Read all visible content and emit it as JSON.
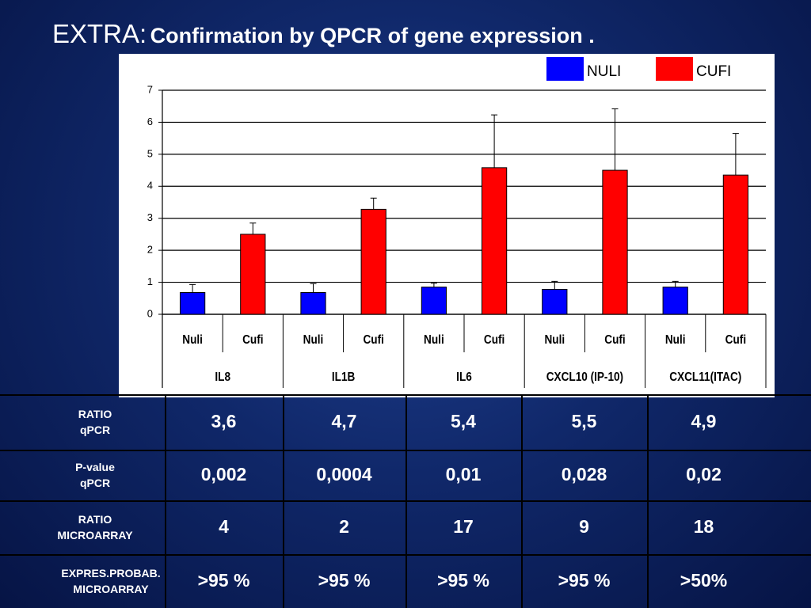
{
  "chart_data": {
    "type": "bar",
    "title": "EXTRA:",
    "subtitle": "Confirmation by QPCR of gene expression .",
    "categories": [
      "IL8",
      "IL1B",
      "IL6",
      "CXCL10 (IP-10)",
      "CXCL11(ITAC)"
    ],
    "bar_labels": [
      "Nuli",
      "Cufi",
      "Nuli",
      "Cufi",
      "Nuli",
      "Cufi",
      "Nuli",
      "Cufi",
      "Nuli",
      "Cufi"
    ],
    "series": [
      {
        "name": "NULI",
        "color": "#0000ff",
        "values": [
          0.68,
          0.68,
          0.85,
          0.78,
          0.85
        ],
        "errors": [
          0.25,
          0.28,
          0.12,
          0.25,
          0.18
        ]
      },
      {
        "name": "CUFI",
        "color": "#ff0000",
        "values": [
          2.5,
          3.28,
          4.58,
          4.5,
          4.35
        ],
        "errors": [
          0.35,
          0.35,
          1.65,
          1.92,
          1.3
        ]
      }
    ],
    "ylim": [
      0,
      7
    ],
    "yticks": [
      0,
      1,
      2,
      3,
      4,
      5,
      6,
      7
    ],
    "grid": true,
    "legend": "top-right"
  },
  "table": {
    "rows": [
      {
        "label": "RATIO\nqPCR",
        "cells": [
          "3,6",
          "4,7",
          "5,4",
          "5,5",
          "4,9"
        ]
      },
      {
        "label": "P-value\nqPCR",
        "cells": [
          "0,002",
          "0,0004",
          "0,01",
          "0,028",
          "0,02"
        ]
      },
      {
        "label": "RATIO\nMICROARRAY",
        "cells": [
          "4",
          "2",
          "17",
          "9",
          "18"
        ]
      },
      {
        "label": "EXPRES.PROBAB.\nMICROARRAY",
        "cells": [
          ">95 %",
          ">95 %",
          ">95 %",
          ">95 %",
          ">50%"
        ]
      }
    ]
  }
}
